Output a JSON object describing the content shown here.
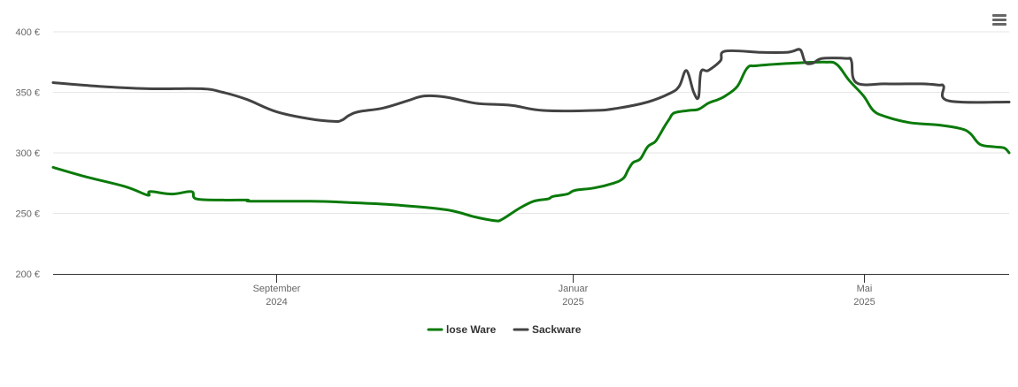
{
  "colors": {
    "lose_ware": "#0a7a0a",
    "sackware": "#434343",
    "grid": "#e6e6e6",
    "axis": "#333333"
  },
  "icons": {
    "menu": "hamburger-menu-icon"
  },
  "chart_data": {
    "type": "line",
    "title": "",
    "xlabel": "",
    "ylabel": "",
    "x_range": [
      "2024-06-01",
      "2025-06-30"
    ],
    "ylim": [
      200,
      400
    ],
    "y_ticks": [
      {
        "value": 200,
        "label": "200 €"
      },
      {
        "value": 250,
        "label": "250 €"
      },
      {
        "value": 300,
        "label": "300 €"
      },
      {
        "value": 350,
        "label": "350 €"
      },
      {
        "value": 400,
        "label": "400 €"
      }
    ],
    "x_ticks": [
      {
        "date": "2024-09-01",
        "month": "September",
        "year": "2024"
      },
      {
        "date": "2025-01-01",
        "month": "Januar",
        "year": "2025"
      },
      {
        "date": "2025-05-01",
        "month": "Mai",
        "year": "2025"
      }
    ],
    "grid": true,
    "legend_position": "bottom-center",
    "series": [
      {
        "name": "lose Ware",
        "color": "#0a7a0a",
        "points": [
          [
            "2024-06-01",
            288
          ],
          [
            "2024-06-15",
            280
          ],
          [
            "2024-07-01",
            272
          ],
          [
            "2024-07-20",
            266
          ],
          [
            "2024-07-10",
            265
          ],
          [
            "2024-07-11",
            268
          ],
          [
            "2024-07-28",
            268
          ],
          [
            "2024-07-30",
            262
          ],
          [
            "2024-08-10",
            261
          ],
          [
            "2024-08-20",
            261
          ],
          [
            "2024-08-22",
            260
          ],
          [
            "2024-09-15",
            260
          ],
          [
            "2024-10-01",
            259
          ],
          [
            "2024-10-20",
            257
          ],
          [
            "2024-11-10",
            253
          ],
          [
            "2024-11-22",
            247
          ],
          [
            "2024-11-30",
            244
          ],
          [
            "2024-12-03",
            245
          ],
          [
            "2024-12-10",
            254
          ],
          [
            "2024-12-16",
            260
          ],
          [
            "2024-12-22",
            262
          ],
          [
            "2024-12-24",
            264
          ],
          [
            "2024-12-30",
            266
          ],
          [
            "2025-01-02",
            269
          ],
          [
            "2025-01-10",
            271
          ],
          [
            "2025-01-18",
            275
          ],
          [
            "2025-01-22",
            279
          ],
          [
            "2025-01-24",
            286
          ],
          [
            "2025-01-26",
            292
          ],
          [
            "2025-01-29",
            295
          ],
          [
            "2025-02-01",
            305
          ],
          [
            "2025-02-04",
            309
          ],
          [
            "2025-02-06",
            315
          ],
          [
            "2025-02-08",
            322
          ],
          [
            "2025-02-10",
            328
          ],
          [
            "2025-02-12",
            333
          ],
          [
            "2025-02-18",
            335
          ],
          [
            "2025-02-22",
            336
          ],
          [
            "2025-02-26",
            341
          ],
          [
            "2025-03-02",
            344
          ],
          [
            "2025-03-05",
            347
          ],
          [
            "2025-03-10",
            355
          ],
          [
            "2025-03-14",
            370
          ],
          [
            "2025-03-18",
            372
          ],
          [
            "2025-04-01",
            374
          ],
          [
            "2025-04-15",
            375
          ],
          [
            "2025-04-20",
            373
          ],
          [
            "2025-04-25",
            360
          ],
          [
            "2025-05-01",
            347
          ],
          [
            "2025-05-05",
            335
          ],
          [
            "2025-05-10",
            330
          ],
          [
            "2025-05-20",
            325
          ],
          [
            "2025-06-01",
            323
          ],
          [
            "2025-06-10",
            320
          ],
          [
            "2025-06-14",
            316
          ],
          [
            "2025-06-18",
            307
          ],
          [
            "2025-06-24",
            305
          ],
          [
            "2025-06-28",
            304
          ],
          [
            "2025-06-30",
            300
          ]
        ]
      },
      {
        "name": "Sackware",
        "color": "#434343",
        "points": [
          [
            "2024-06-01",
            358
          ],
          [
            "2024-06-20",
            355
          ],
          [
            "2024-07-10",
            353
          ],
          [
            "2024-08-01",
            353
          ],
          [
            "2024-08-10",
            350
          ],
          [
            "2024-08-20",
            344
          ],
          [
            "2024-09-01",
            334
          ],
          [
            "2024-09-15",
            328
          ],
          [
            "2024-09-25",
            326
          ],
          [
            "2024-09-28",
            327
          ],
          [
            "2024-10-01",
            331
          ],
          [
            "2024-10-05",
            334
          ],
          [
            "2024-10-15",
            337
          ],
          [
            "2024-10-25",
            343
          ],
          [
            "2024-11-01",
            347
          ],
          [
            "2024-11-10",
            346
          ],
          [
            "2024-11-22",
            341
          ],
          [
            "2024-12-01",
            340
          ],
          [
            "2024-12-08",
            339
          ],
          [
            "2024-12-20",
            335
          ],
          [
            "2025-01-10",
            335
          ],
          [
            "2025-01-20",
            337
          ],
          [
            "2025-02-01",
            342
          ],
          [
            "2025-02-10",
            349
          ],
          [
            "2025-02-14",
            355
          ],
          [
            "2025-02-17",
            368
          ],
          [
            "2025-02-20",
            350
          ],
          [
            "2025-02-22",
            346
          ],
          [
            "2025-02-23",
            367
          ],
          [
            "2025-02-26",
            368
          ],
          [
            "2025-03-03",
            376
          ],
          [
            "2025-03-05",
            384
          ],
          [
            "2025-03-20",
            383
          ],
          [
            "2025-03-30",
            383
          ],
          [
            "2025-04-02",
            384
          ],
          [
            "2025-04-05",
            385
          ],
          [
            "2025-04-07",
            375
          ],
          [
            "2025-04-10",
            374
          ],
          [
            "2025-04-14",
            378
          ],
          [
            "2025-04-24",
            378
          ],
          [
            "2025-04-26",
            376
          ],
          [
            "2025-04-28",
            358
          ],
          [
            "2025-05-10",
            357
          ],
          [
            "2025-05-25",
            357
          ],
          [
            "2025-06-01",
            356
          ],
          [
            "2025-06-03",
            355
          ],
          [
            "2025-06-05",
            343
          ],
          [
            "2025-06-30",
            342
          ]
        ]
      }
    ]
  }
}
